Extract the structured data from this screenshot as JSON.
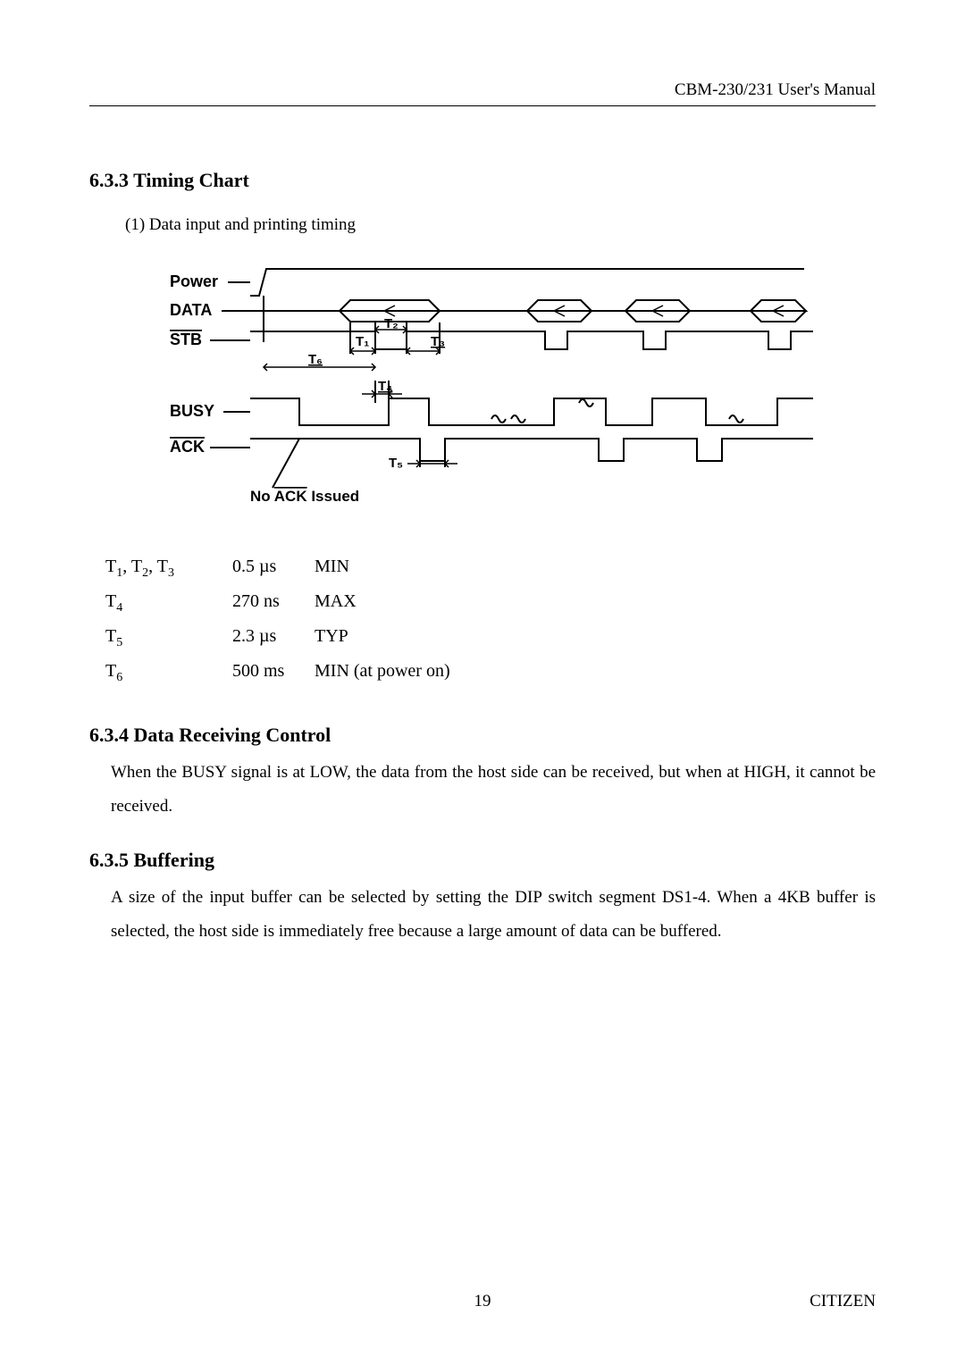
{
  "header": {
    "doc_title": "CBM-230/231 User's Manual"
  },
  "section633": {
    "num": "6.3.3",
    "title": "Timing Chart",
    "item1": "(1)   Data input and printing timing"
  },
  "diagram": {
    "signals": {
      "power": "Power",
      "data": "DATA",
      "stb": "STB",
      "busy": "BUSY",
      "ack": "ACK"
    },
    "t_labels": {
      "t1": "T₁",
      "t2": "T₂",
      "t3": "T₃",
      "t4": "T₄",
      "t5": "T₅",
      "t6": "T₆"
    },
    "note_prefix": "No ",
    "note_sig": "ACK",
    "note_suffix": " Issued"
  },
  "timing_values": [
    {
      "sym_html": "T<sub>1</sub>, T<sub>2</sub>, T<sub>3</sub>",
      "val": "0.5 µs",
      "type": "MIN"
    },
    {
      "sym_html": "T<sub>4</sub>",
      "val": "270 ns",
      "type": "MAX"
    },
    {
      "sym_html": "T<sub>5</sub>",
      "val": "2.3 µs",
      "type": "TYP"
    },
    {
      "sym_html": "T<sub>6</sub>",
      "val": "500 ms",
      "type": "MIN (at power on)"
    }
  ],
  "section634": {
    "num": "6.3.4",
    "title": "Data Receiving Control",
    "body": "When the BUSY signal is at LOW, the data from the host side can be received, but when at HIGH, it cannot be received."
  },
  "section635": {
    "num": "6.3.5",
    "title": "Buffering",
    "body": "A size of the input buffer can be selected by setting the DIP switch segment DS1-4. When a 4KB buffer is selected, the host side is immediately free because a large amount of data can be buffered."
  },
  "footer": {
    "page": "19",
    "brand": "CITIZEN"
  }
}
